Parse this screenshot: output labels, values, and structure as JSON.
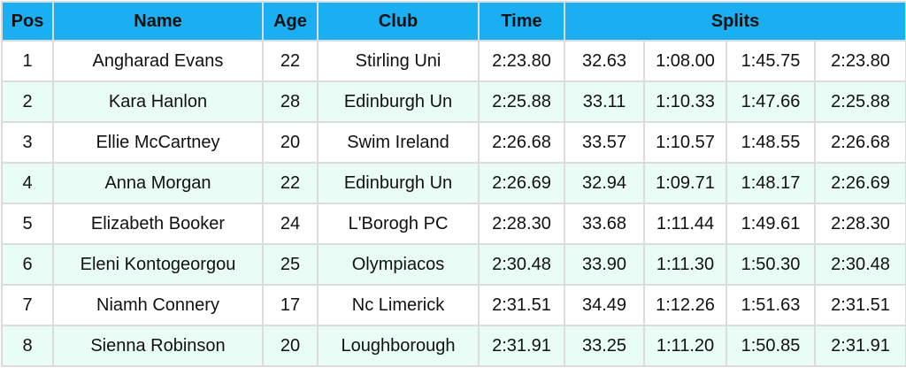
{
  "table": {
    "headers": [
      "Pos",
      "Name",
      "Age",
      "Club",
      "Time",
      "Splits"
    ],
    "rows": [
      [
        "1",
        "Angharad Evans",
        "22",
        "Stirling Uni",
        "2:23.80",
        "32.63",
        "1:08.00",
        "1:45.75",
        "2:23.80"
      ],
      [
        "2",
        "Kara Hanlon",
        "28",
        "Edinburgh Un",
        "2:25.88",
        "33.11",
        "1:10.33",
        "1:47.66",
        "2:25.88"
      ],
      [
        "3",
        "Ellie McCartney",
        "20",
        "Swim Ireland",
        "2:26.68",
        "33.57",
        "1:10.57",
        "1:48.55",
        "2:26.68"
      ],
      [
        "4",
        "Anna Morgan",
        "22",
        "Edinburgh Un",
        "2:26.69",
        "32.94",
        "1:09.71",
        "1:48.17",
        "2:26.69"
      ],
      [
        "5",
        "Elizabeth Booker",
        "24",
        "L'Borogh PC",
        "2:28.30",
        "33.68",
        "1:11.44",
        "1:49.61",
        "2:28.30"
      ],
      [
        "6",
        "Eleni Kontogeorgou",
        "25",
        "Olympiacos",
        "2:30.48",
        "33.90",
        "1:11.30",
        "1:50.30",
        "2:30.48"
      ],
      [
        "7",
        "Niamh Connery",
        "17",
        "Nc Limerick",
        "2:31.51",
        "34.49",
        "1:12.26",
        "1:51.63",
        "2:31.51"
      ],
      [
        "8",
        "Sienna Robinson",
        "20",
        "Loughborough",
        "2:31.91",
        "33.25",
        "1:11.20",
        "1:50.85",
        "2:31.91"
      ]
    ]
  }
}
